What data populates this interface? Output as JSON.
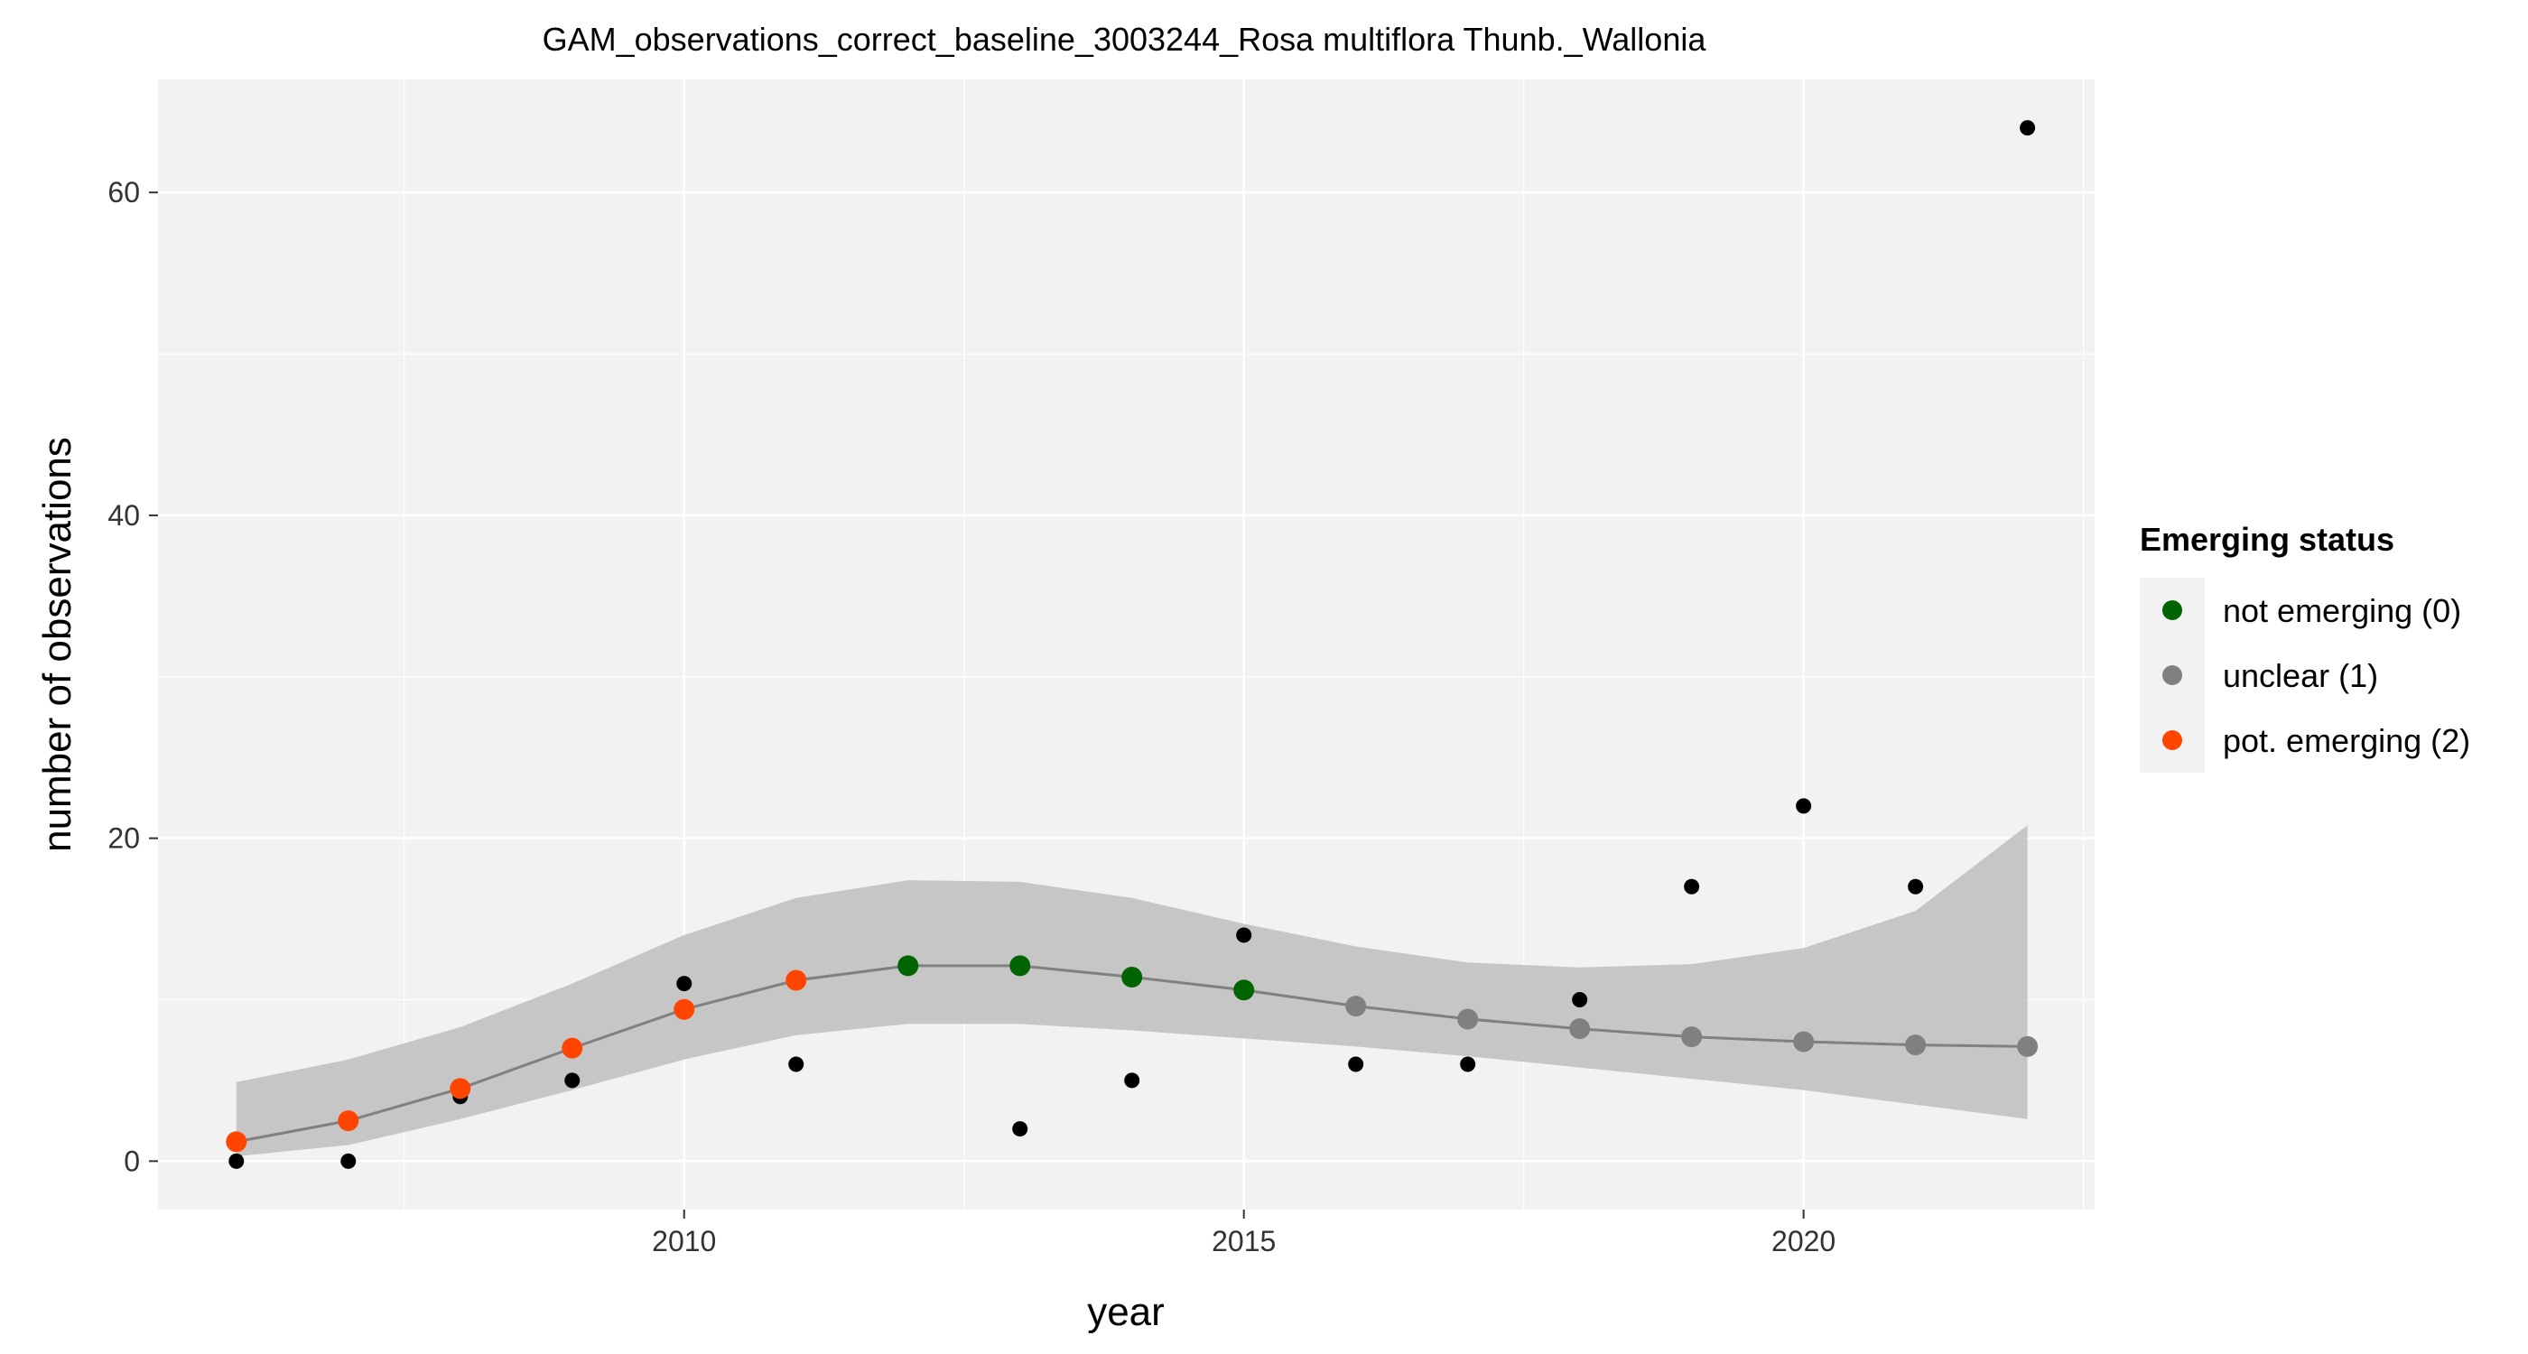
{
  "chart_data": {
    "type": "scatter",
    "title": "GAM_observations_correct_baseline_3003244_Rosa multiflora Thunb._Wallonia",
    "xlabel": "year",
    "ylabel": "number of observations",
    "xlim": [
      2005.3,
      2022.6
    ],
    "ylim": [
      -3,
      67
    ],
    "x_ticks": [
      2010,
      2015,
      2020
    ],
    "y_ticks": [
      0,
      20,
      40,
      60
    ],
    "grid": true,
    "legend_position": "right",
    "observations": {
      "x": [
        2006,
        2007,
        2008,
        2009,
        2010,
        2011,
        2012,
        2013,
        2014,
        2015,
        2016,
        2017,
        2018,
        2019,
        2020,
        2021,
        2022
      ],
      "y": [
        0,
        0,
        4,
        5,
        11,
        6,
        12,
        2,
        5,
        14,
        6,
        6,
        10,
        17,
        22,
        17,
        64
      ]
    },
    "gam_fit": {
      "x": [
        2006,
        2007,
        2008,
        2009,
        2010,
        2011,
        2012,
        2013,
        2014,
        2015,
        2016,
        2017,
        2018,
        2019,
        2020,
        2021,
        2022
      ],
      "fit": [
        1.2,
        2.5,
        4.5,
        7.0,
        9.4,
        11.2,
        12.1,
        12.1,
        11.4,
        10.6,
        9.6,
        8.8,
        8.2,
        7.7,
        7.4,
        7.2,
        7.1
      ],
      "lower": [
        0.3,
        1.0,
        2.6,
        4.4,
        6.3,
        7.8,
        8.5,
        8.5,
        8.1,
        7.6,
        7.1,
        6.5,
        5.8,
        5.1,
        4.4,
        3.5,
        2.6
      ],
      "upper": [
        4.9,
        6.3,
        8.3,
        11.0,
        14.0,
        16.3,
        17.4,
        17.3,
        16.3,
        14.7,
        13.3,
        12.3,
        12.0,
        12.2,
        13.2,
        15.5,
        20.8
      ],
      "status": [
        2,
        2,
        2,
        2,
        2,
        2,
        0,
        0,
        0,
        0,
        1,
        1,
        1,
        1,
        1,
        1,
        1
      ]
    },
    "legend": {
      "title": "Emerging status",
      "entries": [
        {
          "code": 0,
          "label": "not emerging (0)",
          "color": "#006400"
        },
        {
          "code": 1,
          "label": "unclear (1)",
          "color": "#808080"
        },
        {
          "code": 2,
          "label": "pot. emerging (2)",
          "color": "#FF4500"
        }
      ]
    },
    "colors": {
      "panel_bg": "#F2F2F2",
      "grid": "#FFFFFF",
      "ribbon": "#BEBEBE",
      "line": "#808080",
      "observation_point": "#000000"
    }
  }
}
